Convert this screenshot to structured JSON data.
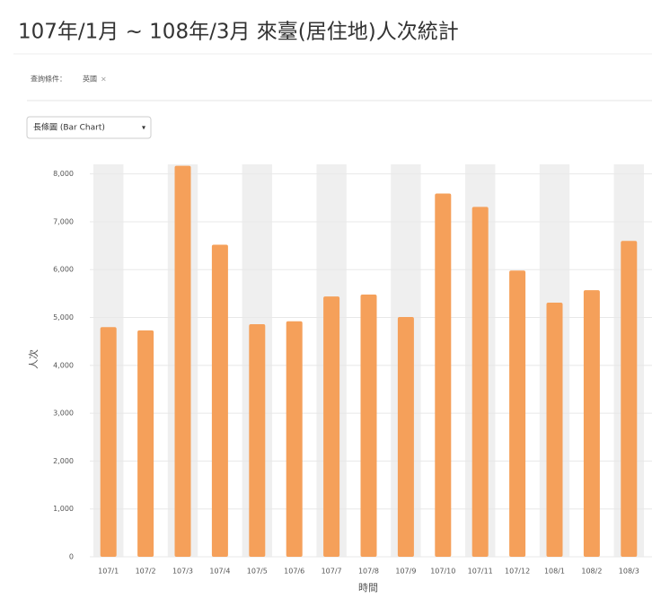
{
  "header": {
    "title": "107年/1月 ~ 108年/3月 來臺(居住地)人次統計"
  },
  "filter": {
    "label": "查詢條件：",
    "tag": "英國",
    "remove": "×"
  },
  "dropdown": {
    "label": "長條圖 (Bar Chart)",
    "arrow": "▾"
  },
  "chart_data": {
    "type": "bar",
    "categories": [
      "107/1",
      "107/2",
      "107/3",
      "107/4",
      "107/5",
      "107/6",
      "107/7",
      "107/8",
      "107/9",
      "107/10",
      "107/11",
      "107/12",
      "108/1",
      "108/2",
      "108/3"
    ],
    "values": [
      4800,
      4730,
      8170,
      6520,
      4860,
      4920,
      5440,
      5480,
      5010,
      7590,
      7310,
      5980,
      5310,
      5570,
      6600
    ],
    "color": "#f5a05a",
    "band_color": "#efefef",
    "grid": true,
    "y_label": "人次",
    "x_label": "時間",
    "ylim": [
      0,
      8200
    ],
    "yticks": [
      0,
      {
        "value": 1000,
        "label": "1,000"
      },
      {
        "value": 2000,
        "label": "2,000"
      },
      {
        "value": 3000,
        "label": "3,000"
      },
      {
        "value": 4000,
        "label": "4,000"
      },
      {
        "value": 5000,
        "label": "5,000"
      },
      {
        "value": 6000,
        "label": "6,000"
      },
      {
        "value": 7000,
        "label": "7,000"
      },
      {
        "value": 8000,
        "label": "8,000"
      }
    ]
  }
}
